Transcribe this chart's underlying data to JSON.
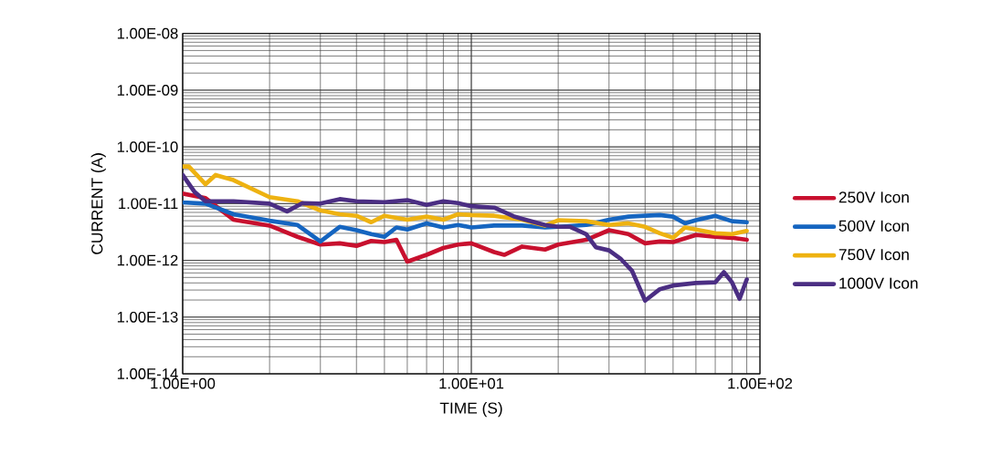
{
  "chart_data": {
    "type": "line",
    "xlabel": "TIME (S)",
    "ylabel": "CURRENT (A)",
    "log": "xy",
    "grid": true,
    "legend": "right",
    "line_style": "solid",
    "xlim": [
      1,
      100
    ],
    "ylim": [
      1e-14,
      1e-08
    ],
    "xticks": [
      {
        "value": 1,
        "label": "1.00E+00"
      },
      {
        "value": 10,
        "label": "1.00E+01"
      },
      {
        "value": 100,
        "label": "1.00E+02"
      }
    ],
    "yticks": [
      {
        "value": 1e-14,
        "label": "1.00E-14"
      },
      {
        "value": 1e-13,
        "label": "1.00E-13"
      },
      {
        "value": 1e-12,
        "label": "1.00E-12"
      },
      {
        "value": 1e-11,
        "label": "1.00E-11"
      },
      {
        "value": 1e-10,
        "label": "1.00E-10"
      },
      {
        "value": 1e-09,
        "label": "1.00E-09"
      },
      {
        "value": 1e-08,
        "label": "1.00E-08"
      }
    ],
    "series": [
      {
        "name": "250V Icon",
        "color": "#c8102e",
        "x": [
          1,
          1.2,
          1.5,
          2,
          2.5,
          3,
          3.5,
          4,
          4.5,
          5,
          5.5,
          6,
          7,
          8,
          9,
          10,
          12,
          13,
          15,
          18,
          20,
          25,
          30,
          35,
          40,
          45,
          50,
          60,
          70,
          80,
          90
        ],
        "values": [
          1.5e-11,
          1.25e-11,
          5.2e-12,
          4.1e-12,
          2.6e-12,
          1.9e-12,
          2e-12,
          1.8e-12,
          2.2e-12,
          2.1e-12,
          2.3e-12,
          9.5e-13,
          1.25e-12,
          1.65e-12,
          1.9e-12,
          2e-12,
          1.4e-12,
          1.25e-12,
          1.75e-12,
          1.55e-12,
          1.9e-12,
          2.3e-12,
          3.4e-12,
          2.9e-12,
          2e-12,
          2.15e-12,
          2.1e-12,
          2.8e-12,
          2.6e-12,
          2.5e-12,
          2.3e-12
        ]
      },
      {
        "name": "500V Icon",
        "color": "#1565c0",
        "x": [
          1,
          1.2,
          1.5,
          2,
          2.5,
          3,
          3.5,
          4,
          4.5,
          5,
          5.5,
          6,
          7,
          8,
          9,
          10,
          12,
          15,
          18,
          20,
          25,
          30,
          35,
          40,
          45,
          50,
          55,
          60,
          70,
          80,
          90
        ],
        "values": [
          1.05e-11,
          1e-11,
          6.5e-12,
          5e-12,
          4.2e-12,
          2.15e-12,
          3.9e-12,
          3.4e-12,
          2.9e-12,
          2.6e-12,
          3.8e-12,
          3.5e-12,
          4.5e-12,
          3.8e-12,
          4.2e-12,
          3.8e-12,
          4.1e-12,
          4.1e-12,
          3.8e-12,
          3.9e-12,
          4.2e-12,
          5.2e-12,
          5.9e-12,
          6.1e-12,
          6.3e-12,
          5.9e-12,
          4.5e-12,
          5.1e-12,
          6.1e-12,
          4.9e-12,
          4.7e-12
        ]
      },
      {
        "name": "750V Icon",
        "color": "#eeb211",
        "x": [
          1,
          1.05,
          1.2,
          1.3,
          1.5,
          2,
          2.5,
          3,
          3.5,
          4,
          4.5,
          5,
          6,
          7,
          8,
          9,
          10,
          12,
          15,
          18,
          20,
          25,
          30,
          35,
          40,
          45,
          50,
          55,
          60,
          70,
          80,
          90
        ],
        "values": [
          4.5e-11,
          4.5e-11,
          2.2e-11,
          3.2e-11,
          2.6e-11,
          1.3e-11,
          1.1e-11,
          7.6e-12,
          6.5e-12,
          6.1e-12,
          4.7e-12,
          6.1e-12,
          5.2e-12,
          5.9e-12,
          5.2e-12,
          6.5e-12,
          6.3e-12,
          6.1e-12,
          5.2e-12,
          4.1e-12,
          5.1e-12,
          4.9e-12,
          4.2e-12,
          4.5e-12,
          3.9e-12,
          3e-12,
          2.5e-12,
          3.8e-12,
          3.5e-12,
          3e-12,
          2.9e-12,
          3.3e-12
        ]
      },
      {
        "name": "1000V Icon",
        "color": "#4b2e83",
        "x": [
          1,
          1.1,
          1.2,
          1.5,
          2,
          2.3,
          2.6,
          3,
          3.5,
          4,
          5,
          6,
          7,
          8,
          9,
          10,
          12,
          14,
          15,
          18,
          20,
          22,
          25,
          27,
          30,
          33,
          36,
          40,
          45,
          50,
          60,
          70,
          75,
          80,
          85,
          90
        ],
        "values": [
          3.2e-11,
          1.6e-11,
          1.1e-11,
          1.1e-11,
          1e-11,
          7.3e-12,
          1.02e-11,
          1e-11,
          1.2e-11,
          1.1e-11,
          1.06e-11,
          1.15e-11,
          9.5e-12,
          1.1e-11,
          1.02e-11,
          9e-12,
          8.5e-12,
          6e-12,
          5.4e-12,
          4.2e-12,
          3.9e-12,
          3.9e-12,
          2.9e-12,
          1.7e-12,
          1.5e-12,
          1.05e-12,
          6.6e-13,
          1.95e-13,
          3.1e-13,
          3.6e-13,
          4e-13,
          4.1e-13,
          6.2e-13,
          4.1e-13,
          2.1e-13,
          4.6e-13
        ]
      }
    ]
  }
}
